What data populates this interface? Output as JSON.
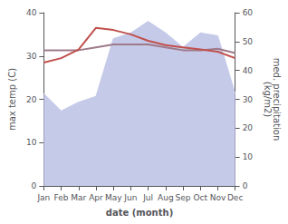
{
  "chart_data": {
    "type": "line",
    "xlabel": "date (month)",
    "ylabel": "max temp (C)",
    "y2label": "med. precipitation\n(kg/m2)",
    "categories": [
      "Jan",
      "Feb",
      "Mar",
      "Apr",
      "May",
      "Jun",
      "Jul",
      "Aug",
      "Sep",
      "Oct",
      "Nov",
      "Dec"
    ],
    "series": [
      {
        "type": "area",
        "color": "#c5cae9",
        "axis": "y2",
        "values": [
          32,
          26,
          29,
          31,
          51,
          53,
          57,
          53,
          48,
          53,
          52,
          32
        ]
      },
      {
        "type": "line",
        "color": "#9e7a8a",
        "axis": "y2",
        "values": [
          47,
          47,
          47,
          48,
          49,
          49,
          49,
          48,
          47,
          47,
          47.5,
          46
        ]
      },
      {
        "type": "line",
        "color": "#c0504d",
        "values": [
          28.5,
          29.5,
          31.5,
          36.5,
          36.0,
          35.0,
          33.5,
          32.5,
          32.0,
          31.5,
          31.0,
          29.5
        ]
      }
    ],
    "ylim": [
      0,
      40
    ],
    "yticks": [
      0,
      10,
      20,
      30,
      40
    ],
    "y2lim": [
      0,
      60
    ],
    "y2ticks": [
      0,
      10,
      20,
      30,
      40,
      50,
      60
    ],
    "grid": false
  }
}
